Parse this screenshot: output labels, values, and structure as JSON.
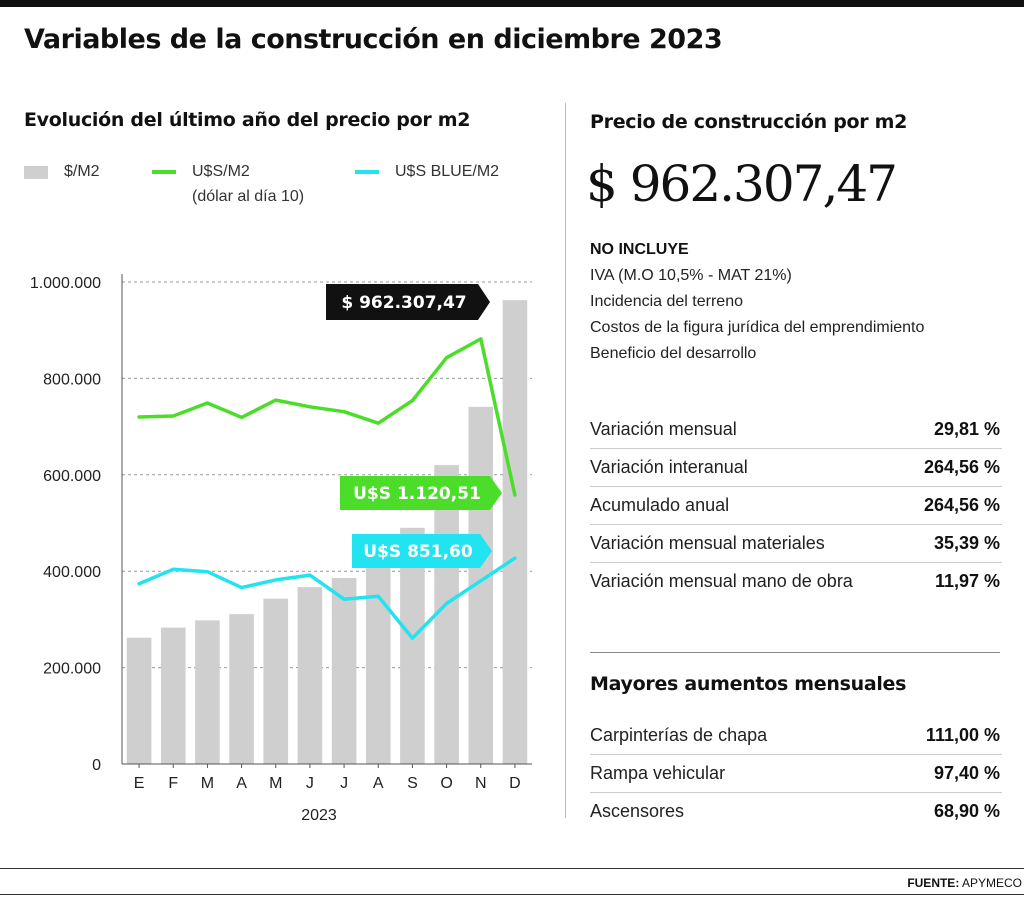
{
  "title": "Variables de la construcción en diciembre 2023",
  "left_panel": {
    "subtitle": "Evolución del último año del precio por m2",
    "legend": [
      {
        "name": "$/M2",
        "color": "#cfcfcf",
        "kind": "bar"
      },
      {
        "name": "U$S/M2",
        "sub": "(dólar al día 10)",
        "color": "#4cdd2a",
        "kind": "line"
      },
      {
        "name": "U$S BLUE/M2",
        "color": "#22e3f0",
        "kind": "line"
      }
    ]
  },
  "chart_data": {
    "type": "bar",
    "categories": [
      "E",
      "F",
      "M",
      "A",
      "M",
      "J",
      "J",
      "A",
      "S",
      "O",
      "N",
      "D"
    ],
    "xlabel": "2023",
    "ylim": [
      0,
      1000000
    ],
    "yticks": [
      "0",
      "200.000",
      "400.000",
      "600.000",
      "800.000",
      "1.000.000"
    ],
    "ytick_values": [
      0,
      200000,
      400000,
      600000,
      800000,
      1000000
    ],
    "grid": true,
    "series": [
      {
        "name": "$/M2",
        "kind": "bar",
        "color": "#cfcfcf",
        "values": [
          262000,
          283000,
          298000,
          311000,
          343000,
          367000,
          386000,
          420000,
          490000,
          620000,
          741000,
          962307
        ]
      },
      {
        "name": "U$S/M2",
        "kind": "line",
        "color": "#4cdd2a",
        "values": [
          720000,
          722000,
          749000,
          719000,
          755000,
          741000,
          731000,
          707000,
          754000,
          843000,
          882000,
          558000
        ]
      },
      {
        "name": "U$S BLUE/M2",
        "kind": "line",
        "color": "#22e3f0",
        "values": [
          374000,
          404000,
          399000,
          366000,
          382000,
          392000,
          342000,
          348000,
          261000,
          333000,
          380000,
          427000
        ]
      }
    ],
    "annotations": [
      {
        "text": "$ 962.307,47",
        "bg": "#111111",
        "fg": "#ffffff",
        "series": "$/M2"
      },
      {
        "text": "U$S 1.120,51",
        "bg": "#4cdd2a",
        "fg": "#ffffff",
        "series": "U$S/M2"
      },
      {
        "text": "U$S 851,60",
        "bg": "#22e3f0",
        "fg": "#ffffff",
        "series": "U$S BLUE/M2"
      }
    ]
  },
  "right_panel": {
    "subtitle": "Precio de construcción por m2",
    "price": "$ 962.307,47",
    "no_incluye_title": "NO INCLUYE",
    "no_incluye": [
      "IVA (M.O 10,5% - MAT 21%)",
      "Incidencia del terreno",
      "Costos de la figura jurídica del emprendimiento",
      "Beneficio del desarrollo"
    ],
    "stats": [
      {
        "label": "Variación mensual",
        "value": "29,81 %"
      },
      {
        "label": "Variación interanual",
        "value": "264,56 %"
      },
      {
        "label": "Acumulado anual",
        "value": "264,56 %"
      },
      {
        "label": "Variación mensual materiales",
        "value": "35,39 %"
      },
      {
        "label": "Variación mensual mano de obra",
        "value": "11,97 %"
      }
    ],
    "mayores_title": "Mayores aumentos mensuales",
    "mayores": [
      {
        "label": "Carpinterías de chapa",
        "value": "111,00 %"
      },
      {
        "label": "Rampa vehicular",
        "value": "97,40 %"
      },
      {
        "label": "Ascensores",
        "value": "68,90 %"
      }
    ]
  },
  "source": {
    "label": "FUENTE:",
    "value": "APYMECO"
  }
}
